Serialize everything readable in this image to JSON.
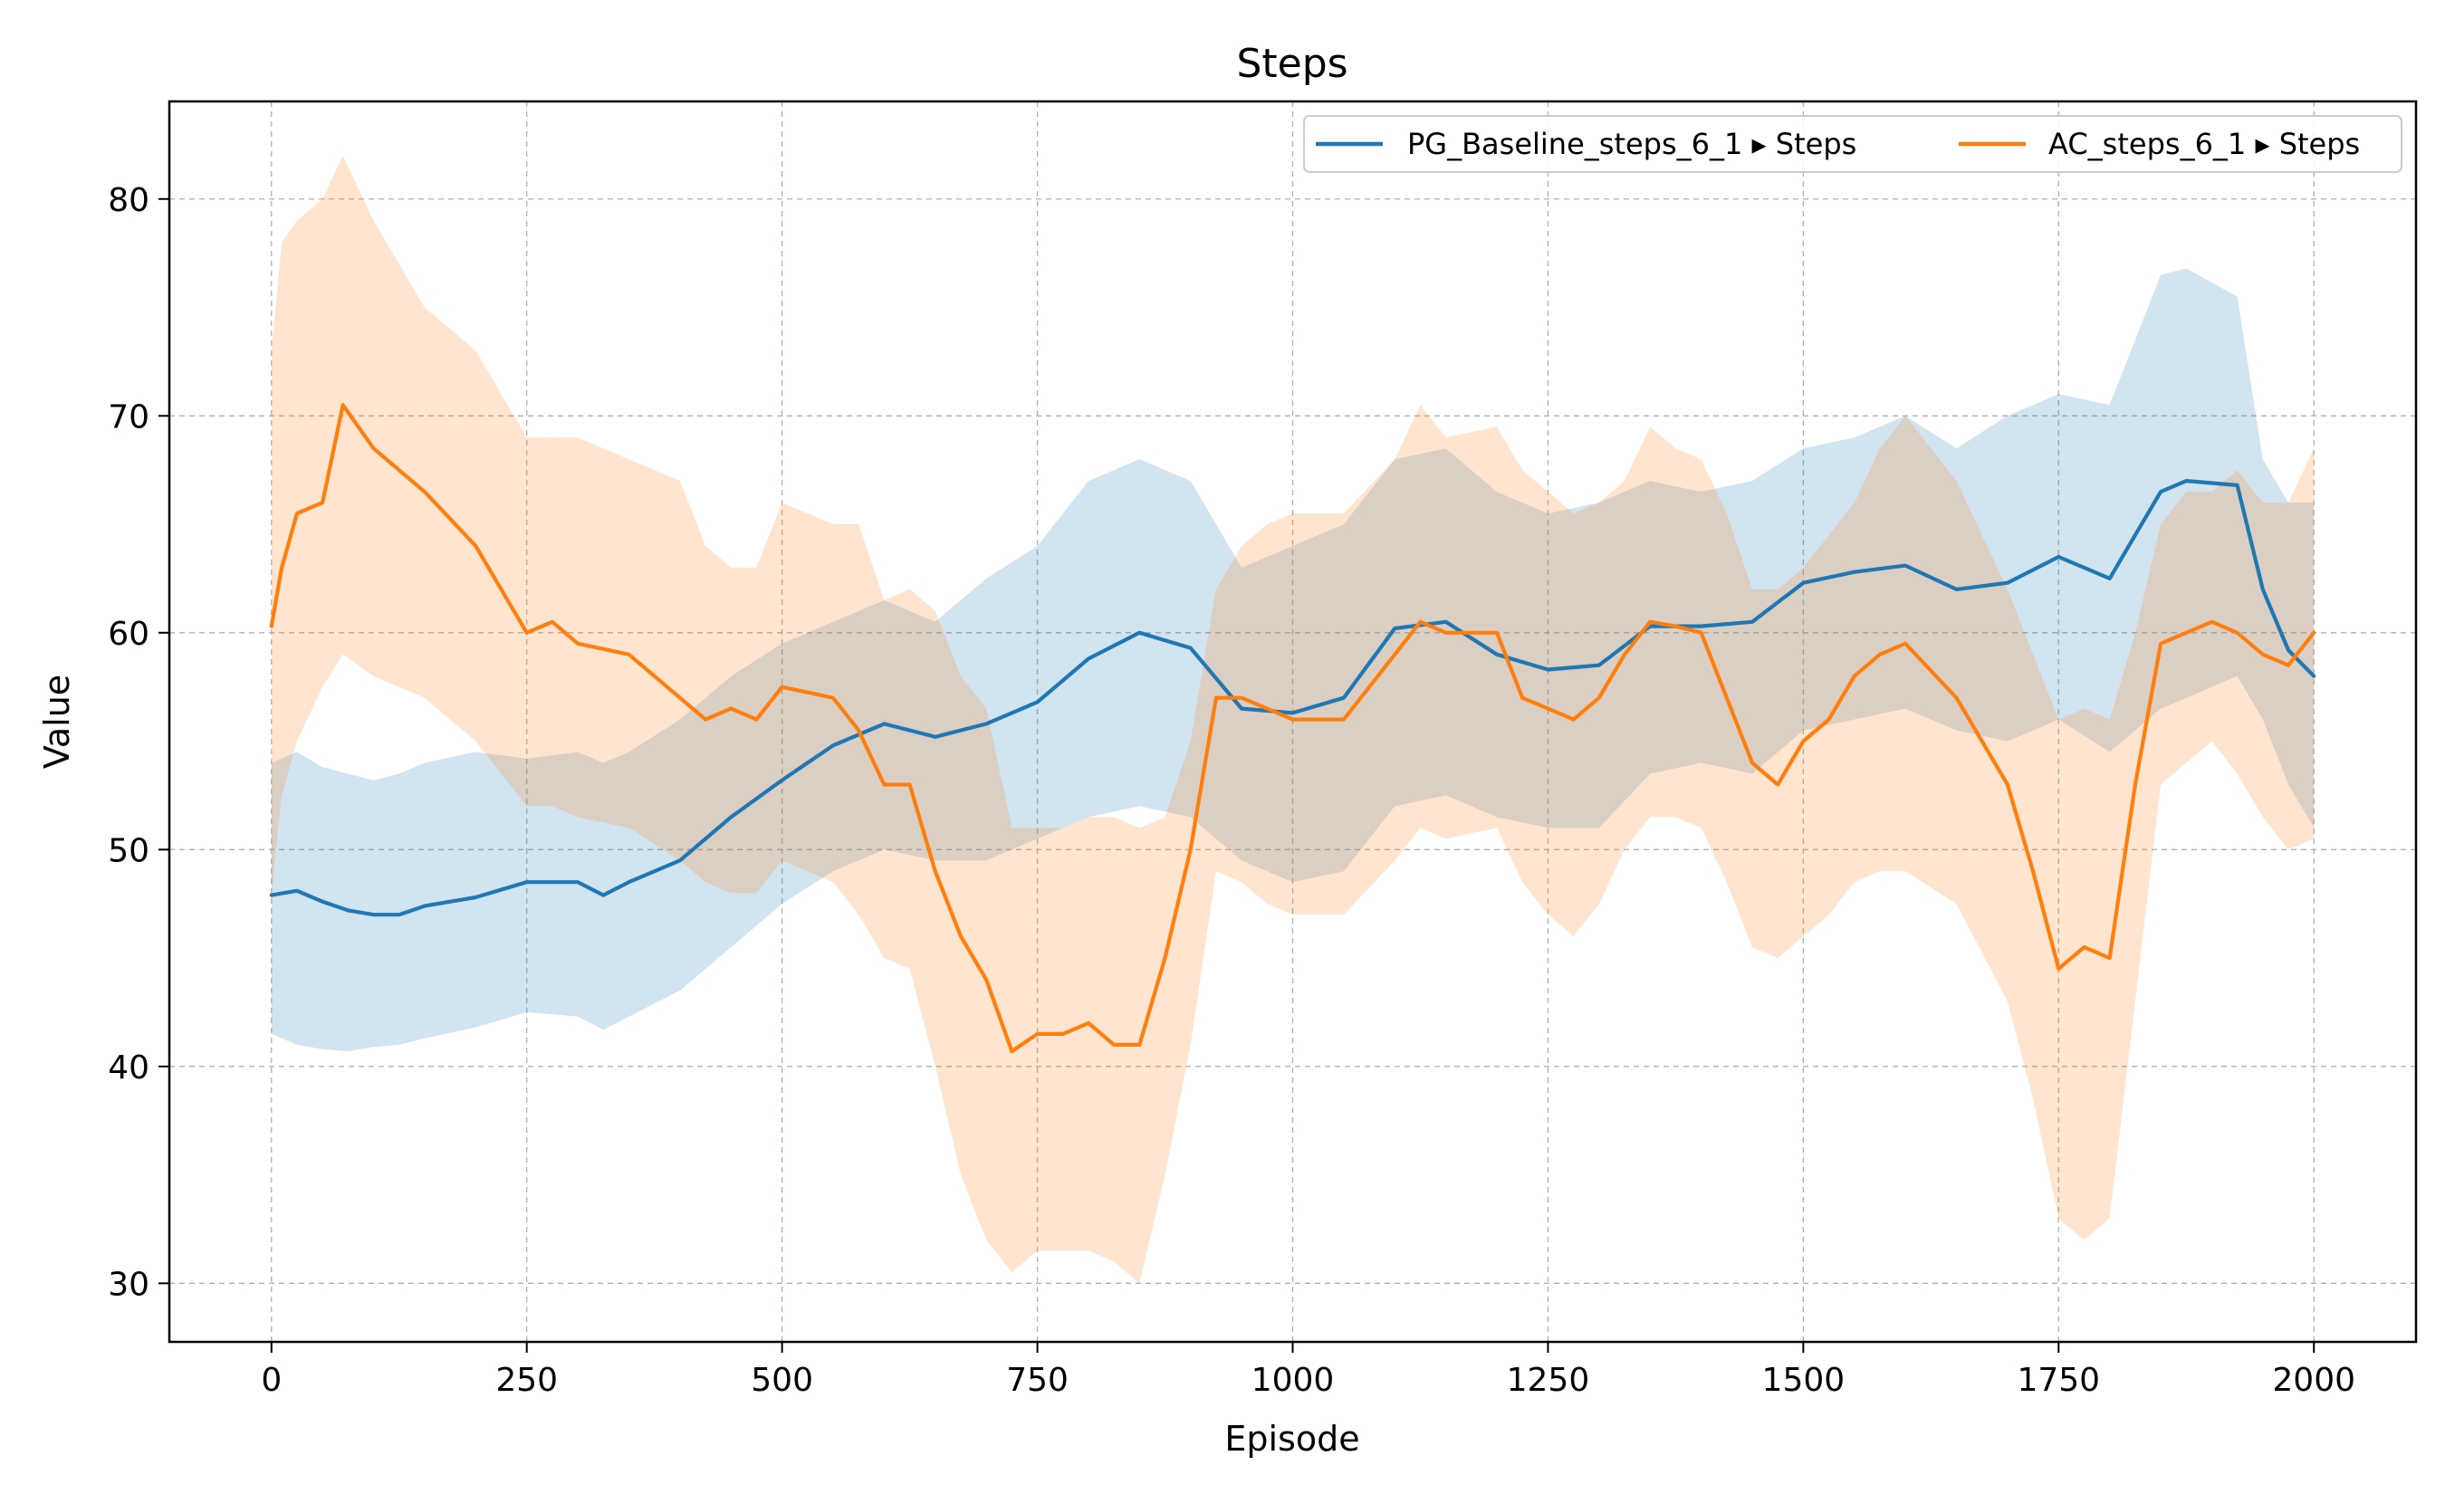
{
  "chart_data": {
    "type": "line",
    "title": "Steps",
    "xlabel": "Episode",
    "ylabel": "Value",
    "xlim": [
      -100,
      2100
    ],
    "ylim": [
      27.3,
      84.5
    ],
    "xticks": [
      0,
      250,
      500,
      750,
      1000,
      1250,
      1500,
      1750,
      2000
    ],
    "yticks": [
      30,
      40,
      50,
      60,
      70,
      80
    ],
    "grid": true,
    "legend_position": "top-right",
    "series": [
      {
        "name": "PG_Baseline_steps_6_1 ▸ Steps",
        "color": "#1f77b4",
        "x": [
          0,
          25,
          50,
          75,
          100,
          125,
          150,
          200,
          250,
          300,
          325,
          350,
          400,
          450,
          500,
          550,
          600,
          650,
          700,
          750,
          800,
          850,
          900,
          950,
          1000,
          1050,
          1100,
          1150,
          1200,
          1250,
          1300,
          1350,
          1400,
          1450,
          1500,
          1550,
          1600,
          1650,
          1700,
          1750,
          1800,
          1850,
          1875,
          1925,
          1950,
          1975,
          2000
        ],
        "mean": [
          47.9,
          48.1,
          47.6,
          47.2,
          47.0,
          47.0,
          47.4,
          47.8,
          48.5,
          48.5,
          47.9,
          48.5,
          49.5,
          51.5,
          53.2,
          54.8,
          55.8,
          55.2,
          55.8,
          56.8,
          58.8,
          60.0,
          59.3,
          56.5,
          56.3,
          57.0,
          60.2,
          60.5,
          59.0,
          58.3,
          58.5,
          60.3,
          60.3,
          60.5,
          62.3,
          62.8,
          63.1,
          62.0,
          62.3,
          63.5,
          62.5,
          66.5,
          67.0,
          66.8,
          62.0,
          59.2,
          58.0
        ],
        "upper": [
          54.0,
          54.5,
          53.8,
          53.5,
          53.2,
          53.5,
          54.0,
          54.5,
          54.2,
          54.5,
          54.0,
          54.5,
          56.0,
          58.0,
          59.5,
          60.5,
          61.5,
          60.5,
          62.5,
          64.0,
          67.0,
          68.0,
          67.0,
          63.0,
          64.0,
          65.0,
          68.0,
          68.5,
          66.5,
          65.5,
          66.0,
          67.0,
          66.5,
          67.0,
          68.5,
          69.0,
          70.0,
          68.5,
          70.0,
          71.0,
          70.5,
          76.5,
          76.8,
          75.5,
          68.0,
          66.0,
          66.0
        ],
        "lower": [
          41.5,
          41.0,
          40.8,
          40.7,
          40.9,
          41.0,
          41.3,
          41.8,
          42.5,
          42.3,
          41.7,
          42.3,
          43.5,
          45.5,
          47.5,
          49.0,
          50.0,
          49.5,
          49.5,
          50.5,
          51.5,
          52.0,
          51.5,
          49.5,
          48.5,
          49.0,
          52.0,
          52.5,
          51.5,
          51.0,
          51.0,
          53.5,
          54.0,
          53.5,
          55.5,
          56.0,
          56.5,
          55.5,
          55.0,
          56.0,
          54.5,
          56.5,
          57.0,
          58.0,
          56.0,
          53.0,
          51.0
        ]
      },
      {
        "name": "AC_steps_6_1 ▸ Steps",
        "color": "#ff7f0e",
        "x": [
          0,
          10,
          25,
          50,
          70,
          100,
          150,
          200,
          250,
          275,
          300,
          350,
          400,
          425,
          450,
          475,
          500,
          550,
          575,
          600,
          625,
          650,
          675,
          700,
          725,
          750,
          775,
          800,
          825,
          850,
          875,
          900,
          925,
          950,
          975,
          1000,
          1050,
          1100,
          1125,
          1150,
          1200,
          1225,
          1250,
          1275,
          1300,
          1325,
          1350,
          1375,
          1400,
          1425,
          1450,
          1475,
          1500,
          1525,
          1550,
          1575,
          1600,
          1650,
          1700,
          1725,
          1750,
          1775,
          1800,
          1825,
          1850,
          1875,
          1900,
          1925,
          1950,
          1975,
          2000
        ],
        "mean": [
          60.3,
          63.0,
          65.5,
          66.0,
          70.5,
          68.5,
          66.5,
          64.0,
          60.0,
          60.5,
          59.5,
          59.0,
          57.0,
          56.0,
          56.5,
          56.0,
          57.5,
          57.0,
          55.5,
          53.0,
          53.0,
          49.0,
          46.0,
          44.0,
          40.7,
          41.5,
          41.5,
          42.0,
          41.0,
          41.0,
          45.0,
          50.0,
          57.0,
          57.0,
          56.5,
          56.0,
          56.0,
          59.0,
          60.5,
          60.0,
          60.0,
          57.0,
          56.5,
          56.0,
          57.0,
          59.0,
          60.5,
          60.3,
          60.0,
          57.0,
          54.0,
          53.0,
          55.0,
          56.0,
          58.0,
          59.0,
          59.5,
          57.0,
          53.0,
          49.0,
          44.5,
          45.5,
          45.0,
          53.0,
          59.5,
          60.0,
          60.5,
          60.0,
          59.0,
          58.5,
          60.0
        ],
        "upper": [
          73.0,
          78.0,
          79.0,
          80.0,
          82.0,
          79.0,
          75.0,
          73.0,
          69.0,
          69.0,
          69.0,
          68.0,
          67.0,
          64.0,
          63.0,
          63.0,
          66.0,
          65.0,
          65.0,
          61.5,
          62.0,
          61.0,
          58.0,
          56.5,
          51.0,
          51.0,
          51.0,
          51.5,
          51.5,
          51.0,
          51.5,
          55.0,
          62.0,
          64.0,
          65.0,
          65.5,
          65.5,
          68.0,
          70.5,
          69.0,
          69.5,
          67.5,
          66.5,
          65.5,
          66.0,
          67.0,
          69.5,
          68.5,
          68.0,
          65.5,
          62.0,
          62.0,
          63.0,
          64.5,
          66.0,
          68.5,
          70.0,
          67.0,
          62.0,
          59.0,
          56.0,
          56.5,
          56.0,
          60.0,
          65.0,
          66.5,
          66.5,
          67.5,
          66.0,
          66.0,
          68.5
        ],
        "lower": [
          48.0,
          52.5,
          55.0,
          57.5,
          59.0,
          58.0,
          57.0,
          55.0,
          52.0,
          52.0,
          51.5,
          51.0,
          49.5,
          48.5,
          48.0,
          48.0,
          49.5,
          48.5,
          47.0,
          45.0,
          44.5,
          40.0,
          35.0,
          32.0,
          30.5,
          31.5,
          31.5,
          31.5,
          31.0,
          30.0,
          35.0,
          41.0,
          49.0,
          48.5,
          47.5,
          47.0,
          47.0,
          49.5,
          51.0,
          50.5,
          51.0,
          48.5,
          47.0,
          46.0,
          47.5,
          50.0,
          51.5,
          51.5,
          51.0,
          48.5,
          45.5,
          45.0,
          46.0,
          47.0,
          48.5,
          49.0,
          49.0,
          47.5,
          43.0,
          38.5,
          33.0,
          32.0,
          33.0,
          43.0,
          53.0,
          54.0,
          55.0,
          53.5,
          51.5,
          50.0,
          50.5
        ]
      }
    ]
  }
}
